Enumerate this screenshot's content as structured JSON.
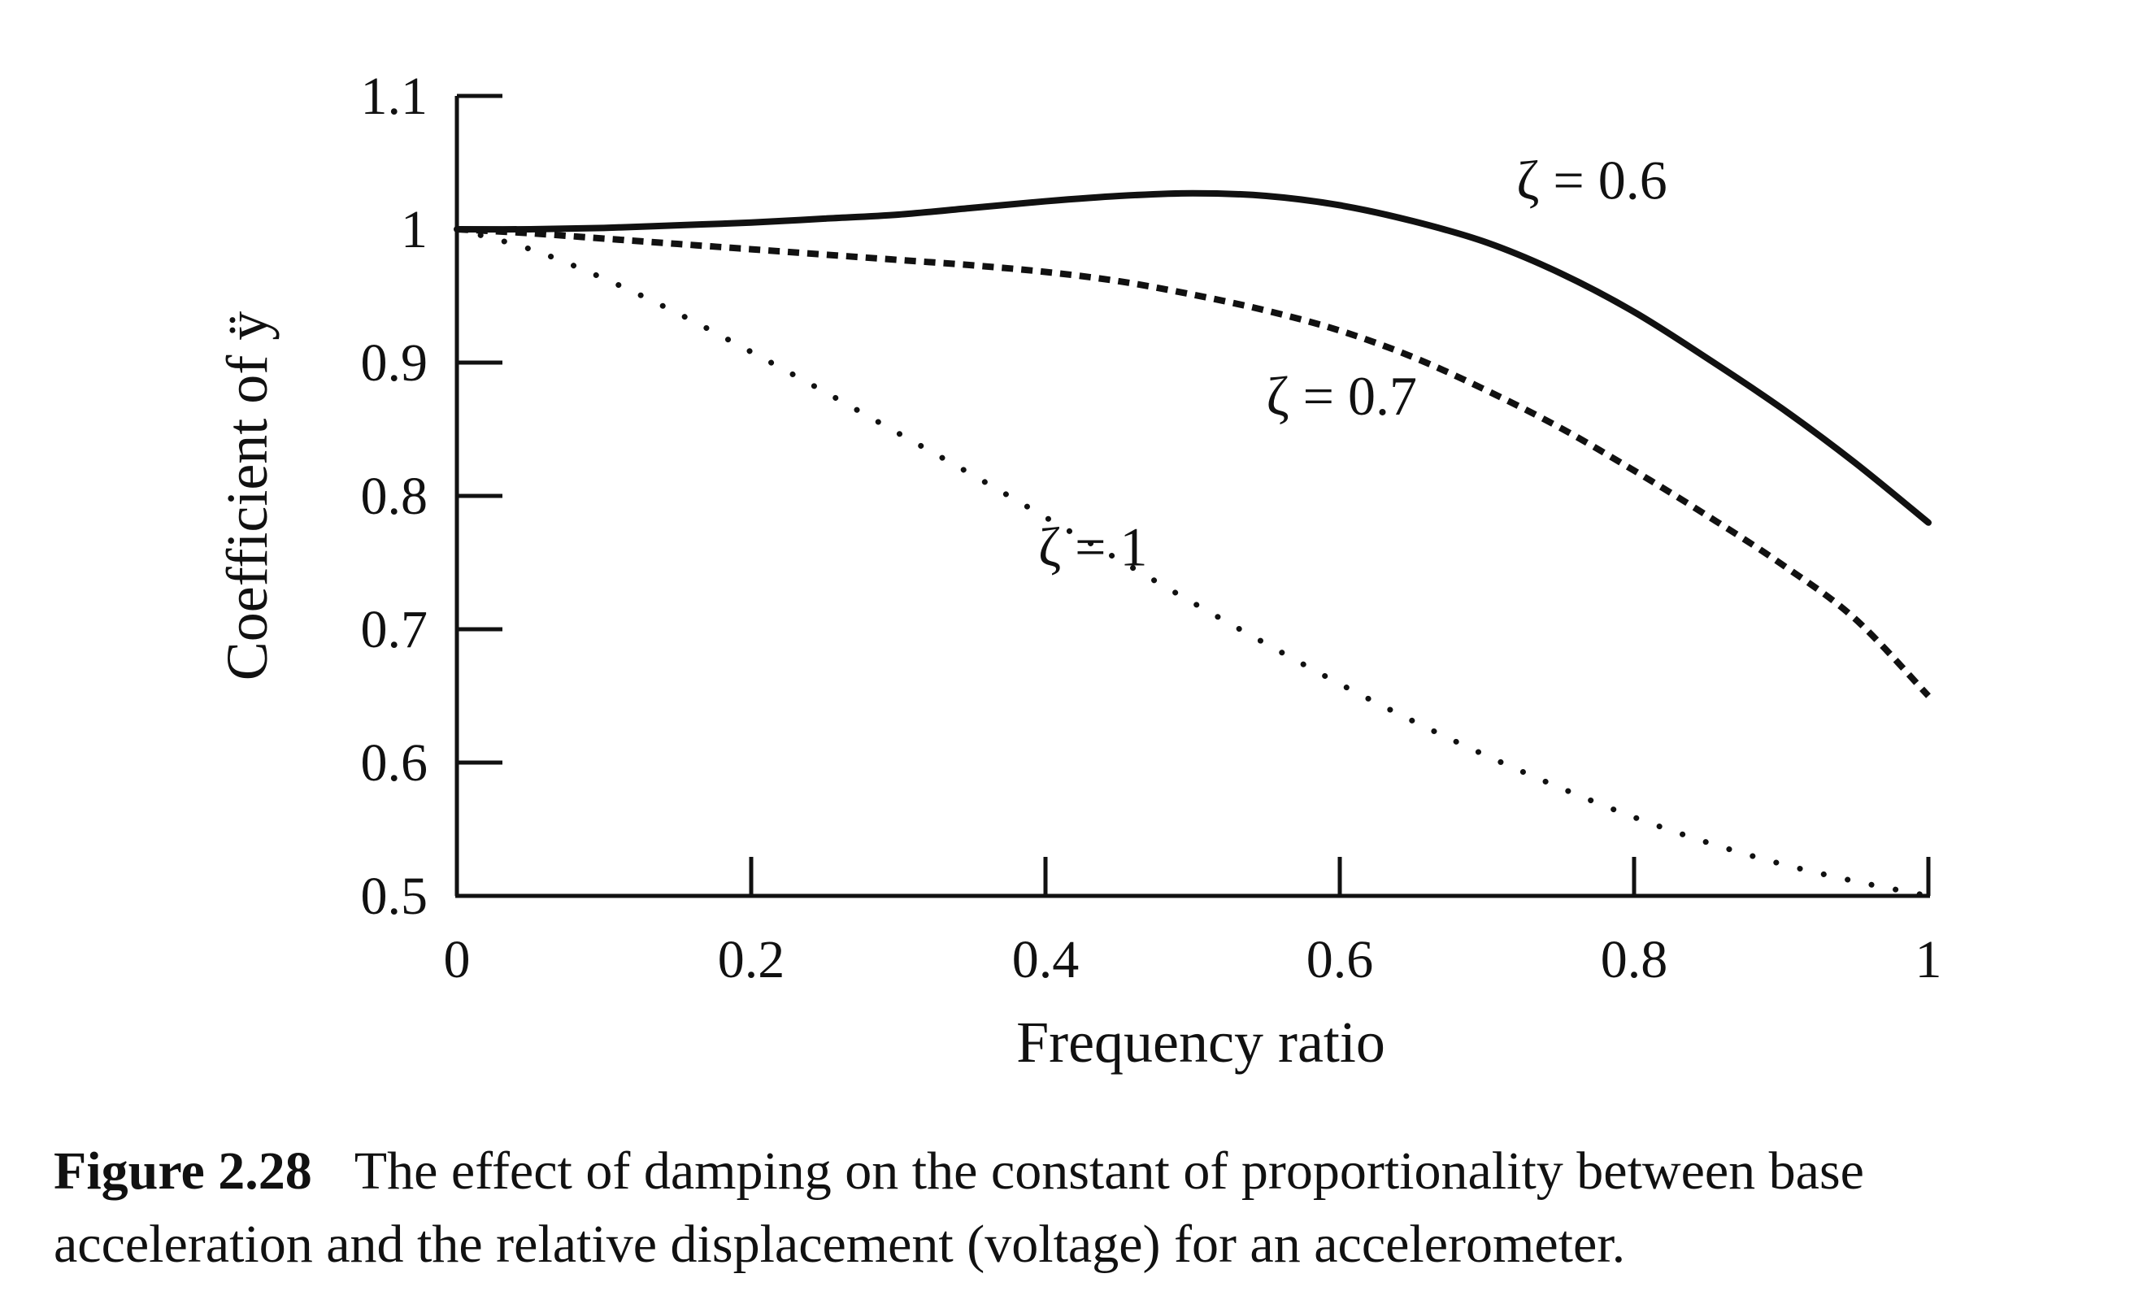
{
  "chart_data": {
    "type": "line",
    "title": "",
    "xlabel": "Frequency ratio",
    "ylabel": "Coefficient of ÿ",
    "xlim": [
      0,
      1
    ],
    "ylim": [
      0.5,
      1.1
    ],
    "xticks": [
      "0",
      "0.2",
      "0.4",
      "0.6",
      "0.8",
      "1"
    ],
    "yticks": [
      "0.5",
      "0.6",
      "0.7",
      "0.8",
      "0.9",
      "1",
      "1.1"
    ],
    "x": [
      0,
      0.05,
      0.1,
      0.15,
      0.2,
      0.25,
      0.3,
      0.35,
      0.4,
      0.45,
      0.5,
      0.55,
      0.6,
      0.65,
      0.7,
      0.75,
      0.8,
      0.85,
      0.9,
      0.95,
      1
    ],
    "series": [
      {
        "name": "ζ = 0.6",
        "style": "solid",
        "values": [
          1.0,
          1.0,
          1.001,
          1.003,
          1.005,
          1.008,
          1.011,
          1.016,
          1.021,
          1.025,
          1.027,
          1.025,
          1.018,
          1.006,
          0.99,
          0.967,
          0.938,
          0.903,
          0.866,
          0.825,
          0.78
        ]
      },
      {
        "name": "ζ = 0.7",
        "style": "dashed",
        "values": [
          1.0,
          0.997,
          0.993,
          0.989,
          0.985,
          0.981,
          0.977,
          0.973,
          0.968,
          0.961,
          0.951,
          0.939,
          0.924,
          0.904,
          0.879,
          0.851,
          0.819,
          0.785,
          0.749,
          0.708,
          0.65
        ]
      },
      {
        "name": "ζ = 1",
        "style": "dotted",
        "values": [
          1.0,
          0.985,
          0.963,
          0.937,
          0.908,
          0.878,
          0.847,
          0.816,
          0.784,
          0.752,
          0.72,
          0.689,
          0.659,
          0.631,
          0.605,
          0.581,
          0.559,
          0.54,
          0.524,
          0.511,
          0.5
        ]
      }
    ],
    "annotations": [
      "ζ = 0.6",
      "ζ = 0.7",
      "ζ = 1"
    ],
    "grid": false,
    "legend": "inline labels"
  },
  "caption": {
    "number": "Figure 2.28",
    "text": "The effect of damping on the constant of proportionality between base acceleration and the relative displacement (voltage) for an accelerometer."
  }
}
